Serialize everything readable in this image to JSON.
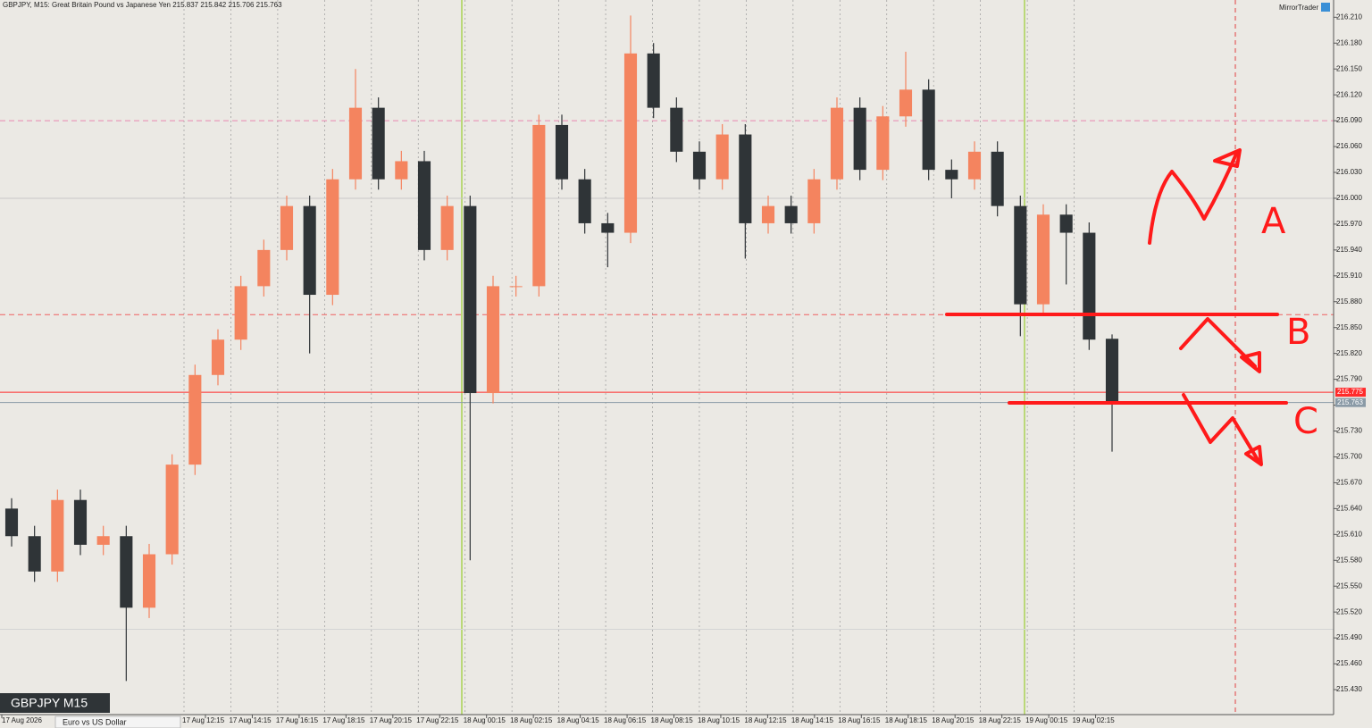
{
  "chart_data": {
    "type": "candlestick",
    "title": "GBPJPY, M15:  Great Britain Pound vs Japanese Yen  215.837 215.842 215.706 215.763",
    "watermark": "MirrorTrader",
    "symbol_box": "GBPJPY M15",
    "tab": "Euro vs US Dollar",
    "annotations": [
      "A",
      "B",
      "C"
    ],
    "up_color": "#f4845f",
    "down_color": "#2f3437",
    "ylim": [
      215.401,
      216.23
    ],
    "yticks": [
      {
        "value": 216.21,
        "label": "216.210"
      },
      {
        "value": 216.18,
        "label": "216.180"
      },
      {
        "value": 216.15,
        "label": "216.150"
      },
      {
        "value": 216.12,
        "label": "216.120"
      },
      {
        "value": 216.09,
        "label": "216.090"
      },
      {
        "value": 216.06,
        "label": "216.060"
      },
      {
        "value": 216.03,
        "label": "216.030"
      },
      {
        "value": 216.0,
        "label": "216.000"
      },
      {
        "value": 215.97,
        "label": "215.970"
      },
      {
        "value": 215.94,
        "label": "215.940"
      },
      {
        "value": 215.91,
        "label": "215.910"
      },
      {
        "value": 215.88,
        "label": "215.880"
      },
      {
        "value": 215.85,
        "label": "215.850"
      },
      {
        "value": 215.82,
        "label": "215.820"
      },
      {
        "value": 215.79,
        "label": "215.790"
      },
      {
        "value": 215.76,
        "label": "215.760"
      },
      {
        "value": 215.73,
        "label": "215.730"
      },
      {
        "value": 215.7,
        "label": "215.700"
      },
      {
        "value": 215.67,
        "label": "215.670"
      },
      {
        "value": 215.64,
        "label": "215.640"
      },
      {
        "value": 215.61,
        "label": "215.610"
      },
      {
        "value": 215.58,
        "label": "215.580"
      },
      {
        "value": 215.55,
        "label": "215.550"
      },
      {
        "value": 215.52,
        "label": "215.520"
      },
      {
        "value": 215.49,
        "label": "215.490"
      },
      {
        "value": 215.46,
        "label": "215.460"
      },
      {
        "value": 215.43,
        "label": "215.430"
      }
    ],
    "x_labels": [
      "17 Aug 2026",
      "17 Aug 12:15",
      "17 Aug 14:15",
      "17 Aug 16:15",
      "17 Aug 18:15",
      "17 Aug 20:15",
      "17 Aug 22:15",
      "18 Aug 00:15",
      "18 Aug 02:15",
      "18 Aug 04:15",
      "18 Aug 06:15",
      "18 Aug 08:15",
      "18 Aug 10:15",
      "18 Aug 12:15",
      "18 Aug 14:15",
      "18 Aug 16:15",
      "18 Aug 18:15",
      "18 Aug 20:15",
      "18 Aug 22:15",
      "19 Aug 00:15",
      "19 Aug 02:15"
    ],
    "levels": [
      {
        "value": 216.09,
        "color": "#e887b0",
        "dashed": true
      },
      {
        "value": 216.0,
        "color": "#c8c8c8",
        "dashed": false
      },
      {
        "value": 215.865,
        "color": "#f06060",
        "dashed": true
      },
      {
        "value": 215.775,
        "color": "#ff2a2a",
        "dashed": false,
        "label": "215.775"
      },
      {
        "value": 215.763,
        "color": "#8a9aa6",
        "dashed": false,
        "label": "215.763"
      },
      {
        "value": 215.5,
        "color": "#d4d4d4",
        "dashed": false
      }
    ],
    "open": [
      215.64,
      215.608,
      215.567,
      215.65,
      215.598,
      215.608,
      215.525,
      215.587,
      215.691,
      215.795,
      215.836,
      215.898,
      215.94,
      215.991,
      215.888,
      216.022,
      216.105,
      216.022,
      216.043,
      215.94,
      215.991,
      215.774,
      215.898,
      215.898,
      216.085,
      216.022,
      215.971,
      215.96,
      216.168,
      216.105,
      216.054,
      216.022,
      216.074,
      215.971,
      215.991,
      215.971,
      216.022,
      216.105,
      216.033,
      216.095,
      216.126,
      216.033,
      216.022,
      216.054,
      215.991,
      215.877,
      215.981,
      215.96,
      215.837
    ],
    "high": [
      215.652,
      215.62,
      215.662,
      215.662,
      215.62,
      215.62,
      215.599,
      215.703,
      215.807,
      215.848,
      215.91,
      215.952,
      216.003,
      216.003,
      216.034,
      216.15,
      216.117,
      216.055,
      216.055,
      216.003,
      216.003,
      215.91,
      215.91,
      216.097,
      216.097,
      216.034,
      215.983,
      216.212,
      216.18,
      216.117,
      216.066,
      216.086,
      216.086,
      216.003,
      216.003,
      216.034,
      216.117,
      216.117,
      216.107,
      216.17,
      216.138,
      216.045,
      216.066,
      216.066,
      216.003,
      215.993,
      215.993,
      215.972,
      215.842
    ],
    "low": [
      215.596,
      215.555,
      215.555,
      215.586,
      215.586,
      215.44,
      215.513,
      215.575,
      215.679,
      215.783,
      215.824,
      215.886,
      215.928,
      215.82,
      215.876,
      216.01,
      216.01,
      216.01,
      215.928,
      215.928,
      215.58,
      215.762,
      215.886,
      215.886,
      216.01,
      215.959,
      215.92,
      215.948,
      216.093,
      216.042,
      216.01,
      216.01,
      215.93,
      215.959,
      215.959,
      215.959,
      216.01,
      216.021,
      216.021,
      216.083,
      216.021,
      216.0,
      216.01,
      215.979,
      215.84,
      215.865,
      215.9,
      215.824,
      215.706
    ],
    "close": [
      215.608,
      215.567,
      215.65,
      215.598,
      215.608,
      215.525,
      215.587,
      215.691,
      215.795,
      215.836,
      215.898,
      215.94,
      215.991,
      215.888,
      216.022,
      216.105,
      216.022,
      216.043,
      215.94,
      215.991,
      215.774,
      215.898,
      215.898,
      216.085,
      216.022,
      215.971,
      215.96,
      216.168,
      216.105,
      216.054,
      216.022,
      216.074,
      215.971,
      215.991,
      215.971,
      216.022,
      216.105,
      216.033,
      216.095,
      216.126,
      216.033,
      216.022,
      216.054,
      215.991,
      215.877,
      215.981,
      215.96,
      215.836,
      215.763
    ]
  }
}
